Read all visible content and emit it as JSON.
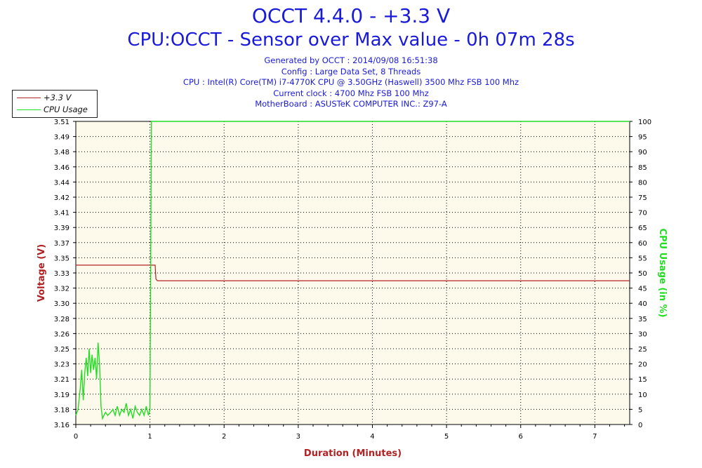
{
  "header": {
    "title": "OCCT 4.4.0 - +3.3 V",
    "subtitle": "CPU:OCCT - Sensor over Max value - 0h 07m 28s",
    "info_lines": [
      "Generated by OCCT : 2014/09/08 16:51:38",
      "Config : Large Data Set, 8 Threads",
      "CPU : Intel(R) Core(TM) i7-4770K CPU @ 3.50GHz (Haswell) 3500 Mhz FSB 100 Mhz",
      "Current clock : 4700 Mhz FSB 100 Mhz",
      "MotherBoard : ASUSTeK COMPUTER INC.: Z97-A"
    ]
  },
  "colors": {
    "voltage": "#b22222",
    "cpu": "#22dd22",
    "plot_bg": "#fdfaeb",
    "title": "#1a1adb",
    "xlabel": "#b22222",
    "grid": "#000000"
  },
  "chart_data": {
    "type": "line",
    "xlabel": "Duration (Minutes)",
    "ylabel": "Voltage (V)",
    "y2label": "CPU Usage (in %)",
    "xlim": [
      0,
      7.47
    ],
    "ylim": [
      3.16,
      3.51
    ],
    "y2lim": [
      0,
      100
    ],
    "x_ticks": [
      0,
      1,
      2,
      3,
      4,
      5,
      6,
      7
    ],
    "y_ticks": [
      "3.16",
      "3.18",
      "3.19",
      "3.21",
      "3.23",
      "3.25",
      "3.26",
      "3.28",
      "3.30",
      "3.32",
      "3.33",
      "3.35",
      "3.37",
      "3.39",
      "3.41",
      "3.42",
      "3.44",
      "3.46",
      "3.48",
      "3.49",
      "3.51"
    ],
    "y2_ticks": [
      0,
      5,
      10,
      15,
      20,
      25,
      30,
      35,
      40,
      45,
      50,
      55,
      60,
      65,
      70,
      75,
      80,
      85,
      90,
      95,
      100
    ],
    "grid": true,
    "legend_position": "top-left",
    "series": [
      {
        "name": "+3.3 V",
        "axis": "left",
        "points": [
          [
            0,
            3.344
          ],
          [
            1.07,
            3.344
          ],
          [
            1.08,
            3.328
          ],
          [
            1.1,
            3.326
          ],
          [
            7.47,
            3.326
          ]
        ]
      },
      {
        "name": "CPU Usage",
        "axis": "right",
        "points": [
          [
            0,
            3
          ],
          [
            0.03,
            5
          ],
          [
            0.06,
            12
          ],
          [
            0.08,
            18
          ],
          [
            0.1,
            8
          ],
          [
            0.12,
            17
          ],
          [
            0.14,
            22
          ],
          [
            0.16,
            16
          ],
          [
            0.18,
            25
          ],
          [
            0.2,
            17
          ],
          [
            0.22,
            23
          ],
          [
            0.24,
            18
          ],
          [
            0.26,
            22
          ],
          [
            0.28,
            15
          ],
          [
            0.3,
            27
          ],
          [
            0.32,
            20
          ],
          [
            0.34,
            6
          ],
          [
            0.36,
            2
          ],
          [
            0.4,
            4
          ],
          [
            0.43,
            3
          ],
          [
            0.47,
            4
          ],
          [
            0.5,
            5
          ],
          [
            0.53,
            3
          ],
          [
            0.56,
            6
          ],
          [
            0.59,
            3
          ],
          [
            0.62,
            5
          ],
          [
            0.65,
            4
          ],
          [
            0.68,
            7
          ],
          [
            0.71,
            3
          ],
          [
            0.74,
            5
          ],
          [
            0.77,
            2
          ],
          [
            0.8,
            6
          ],
          [
            0.83,
            4
          ],
          [
            0.86,
            3
          ],
          [
            0.89,
            5
          ],
          [
            0.92,
            3
          ],
          [
            0.95,
            6
          ],
          [
            0.98,
            3
          ],
          [
            1.0,
            5
          ],
          [
            1.02,
            100
          ],
          [
            7.47,
            100
          ]
        ]
      }
    ]
  }
}
